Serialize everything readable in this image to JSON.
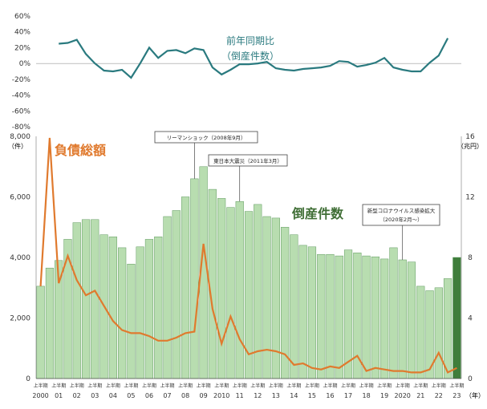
{
  "chart_data": [
    {
      "type": "line",
      "title": "前年同期比",
      "subtitle": "（倒産件数）",
      "ylim": [
        -80,
        60
      ],
      "yticks": [
        "60%",
        "40%",
        "20%",
        "0%",
        "-20%",
        "-40%",
        "-60%",
        "-80%"
      ],
      "colors": {
        "line": "#2a7a7f",
        "label": "#2a7a7f"
      },
      "series": [
        {
          "name": "前年同期比",
          "values": [
            null,
            null,
            25,
            26,
            30,
            12,
            0,
            -9,
            -10,
            -8,
            -18,
            0,
            20,
            7,
            16,
            17,
            13,
            19,
            17,
            -5,
            -14,
            -8,
            -1,
            -1,
            0,
            2,
            -6,
            -8,
            -9,
            -7,
            -6,
            -5,
            -3,
            3,
            2,
            -4,
            -2,
            1,
            7,
            -5,
            -8,
            -10,
            -10,
            1,
            10,
            32
          ]
        }
      ]
    },
    {
      "type": "bar+line",
      "categories": [
        "2000上",
        "2000下",
        "01上",
        "01下",
        "02上",
        "02下",
        "03上",
        "03下",
        "04上",
        "04下",
        "05上",
        "05下",
        "06上",
        "06下",
        "07上",
        "07下",
        "08上",
        "08下",
        "09上",
        "09下",
        "10上",
        "10下",
        "11上",
        "11下",
        "12上",
        "12下",
        "13上",
        "13下",
        "14上",
        "14下",
        "15上",
        "15下",
        "16上",
        "16下",
        "17上",
        "17下",
        "18上",
        "18下",
        "19上",
        "19下",
        "20上",
        "20下",
        "21上",
        "21下",
        "22上",
        "22下",
        "23上"
      ],
      "x_tick_half_label": "上半期",
      "x_year_labels": [
        "2000",
        "01",
        "02",
        "03",
        "04",
        "05",
        "06",
        "07",
        "08",
        "09",
        "2010",
        "11",
        "12",
        "13",
        "14",
        "15",
        "16",
        "17",
        "18",
        "19",
        "2020",
        "21",
        "22",
        "23"
      ],
      "x_unit": "（年）",
      "y_left": {
        "unit": "（件）",
        "ylim": [
          0,
          8000
        ],
        "ticks": [
          "8,000",
          "6,000",
          "4,000",
          "2,000",
          "0"
        ]
      },
      "y_right": {
        "unit": "（兆円）",
        "ylim": [
          0,
          16
        ],
        "ticks": [
          "16",
          "12",
          "8",
          "4",
          "0"
        ]
      },
      "series": [
        {
          "name": "倒産件数",
          "axis": "left",
          "values": [
            3050,
            3650,
            3900,
            4600,
            5150,
            5250,
            5250,
            4750,
            4680,
            4320,
            3780,
            4350,
            4600,
            4680,
            5350,
            5550,
            6000,
            6600,
            7000,
            6250,
            5950,
            5650,
            5850,
            5520,
            5750,
            5350,
            5300,
            5000,
            4750,
            4400,
            4350,
            4100,
            4100,
            4050,
            4250,
            4150,
            4050,
            4020,
            3950,
            4320,
            3920,
            3850,
            3050,
            2900,
            3000,
            3300,
            4000
          ]
        },
        {
          "name": "負債総額",
          "axis": "right",
          "values": [
            6.1,
            15.9,
            6.3,
            8.1,
            6.5,
            5.5,
            5.8,
            4.8,
            3.8,
            3.2,
            3.0,
            3.0,
            2.8,
            2.5,
            2.5,
            2.7,
            3.0,
            3.1,
            8.9,
            4.6,
            2.3,
            4.1,
            2.6,
            1.6,
            1.8,
            1.9,
            1.8,
            1.6,
            0.9,
            1.0,
            0.7,
            0.6,
            0.8,
            0.7,
            1.1,
            1.5,
            0.5,
            0.7,
            0.6,
            0.5,
            0.5,
            0.4,
            0.4,
            0.6,
            1.7,
            0.4,
            0.7
          ]
        }
      ],
      "labels": {
        "debt": "負債総額",
        "bankruptcies": "倒産件数"
      },
      "annotations": [
        {
          "text": "リーマンショック（2008年9月）",
          "at_index": 17
        },
        {
          "text": "東日本大震災（2011年3月）",
          "at_index": 22
        },
        {
          "text": "新型コロナウイルス感染拡大",
          "text2": "（2020年2月～）",
          "at_index": 40
        }
      ],
      "colors": {
        "bar": "#b8ddb0",
        "bar_edge": "#5f9a5f",
        "bar_last": "#3f7d3b",
        "debt_line": "#e07a2e",
        "debt_label": "#e07a2e",
        "count_label": "#3f6e35"
      }
    }
  ]
}
